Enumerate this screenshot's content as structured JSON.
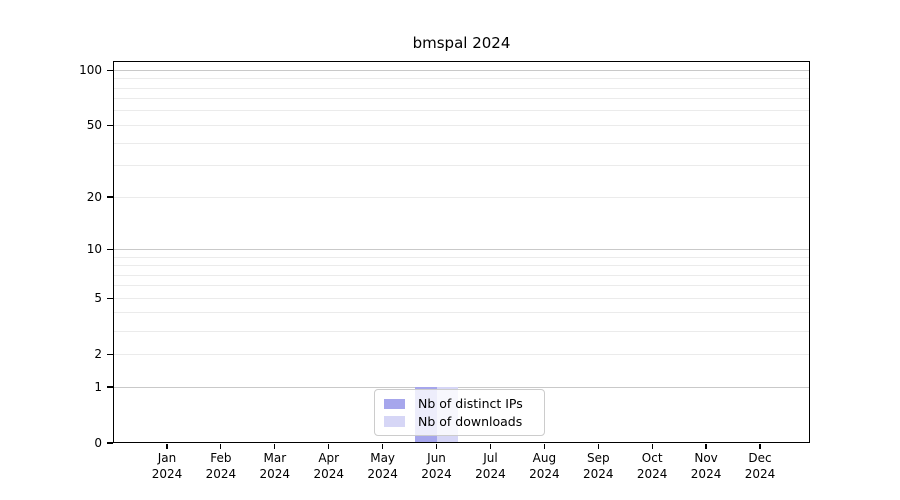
{
  "chart_data": {
    "type": "bar",
    "title": "bmspal 2024",
    "categories": [
      [
        "Jan",
        "2024"
      ],
      [
        "Feb",
        "2024"
      ],
      [
        "Mar",
        "2024"
      ],
      [
        "Apr",
        "2024"
      ],
      [
        "May",
        "2024"
      ],
      [
        "Jun",
        "2024"
      ],
      [
        "Jul",
        "2024"
      ],
      [
        "Aug",
        "2024"
      ],
      [
        "Sep",
        "2024"
      ],
      [
        "Oct",
        "2024"
      ],
      [
        "Nov",
        "2024"
      ],
      [
        "Dec",
        "2024"
      ]
    ],
    "series": [
      {
        "name": "Nb of distinct IPs",
        "color": "#a6a6ec",
        "values": [
          0,
          0,
          0,
          0,
          0,
          1,
          0,
          0,
          0,
          0,
          0,
          0
        ]
      },
      {
        "name": "Nb of downloads",
        "color": "#d6d6f6",
        "values": [
          0,
          0,
          0,
          0,
          0,
          1,
          0,
          0,
          0,
          0,
          0,
          0
        ]
      }
    ],
    "y_axis": {
      "scale": "log(1+y)",
      "ticks": [
        0,
        1,
        2,
        5,
        10,
        20,
        50,
        100
      ],
      "minor_gridlines": [
        3,
        4,
        6,
        7,
        8,
        9,
        30,
        40,
        60,
        70,
        80,
        90
      ],
      "ylim": [
        0,
        114
      ]
    },
    "x_axis": {
      "ticks_per_month": true
    },
    "grid": true,
    "legend_position": "bottom-center",
    "colors": {
      "strong_gridline": "#c9c9c9",
      "minor_gridline": "#ebebeb",
      "axis": "#000000",
      "text": "#000000",
      "background": "#ffffff"
    }
  }
}
